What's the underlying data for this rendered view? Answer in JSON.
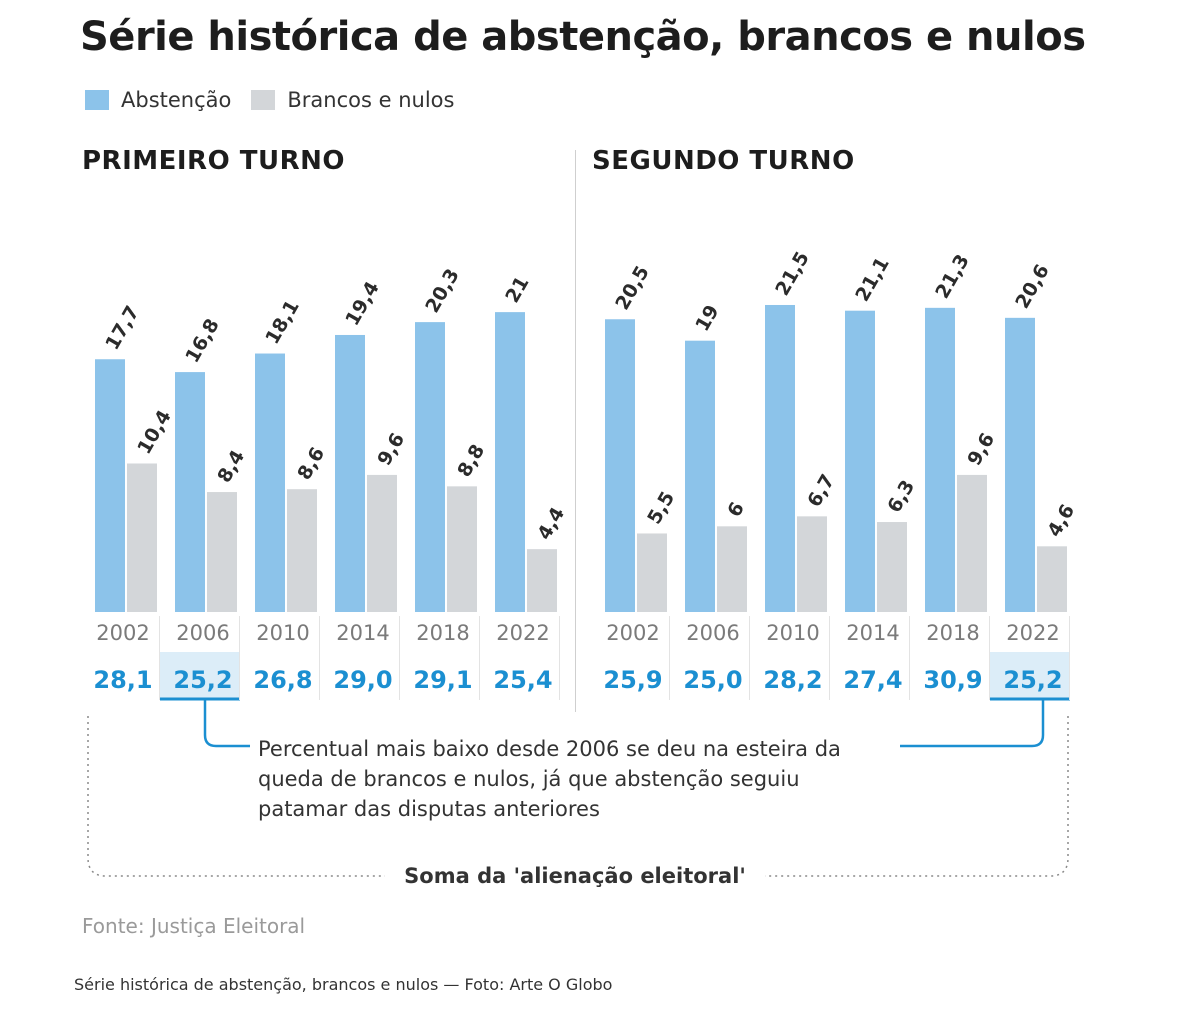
{
  "title": "Série histórica de abstenção, brancos e nulos",
  "legend": [
    {
      "label": "Abstenção",
      "color": "#8cc3ea"
    },
    {
      "label": "Brancos e nulos",
      "color": "#d3d6d9"
    }
  ],
  "colors": {
    "abstencao": "#8cc3ea",
    "brancos": "#d3d6d9",
    "total": "#1b8fd1",
    "highlight_bg": "#dcedf8",
    "connector": "#1b8fd1",
    "dotted": "#8a8a8a"
  },
  "chart_data": [
    {
      "type": "bar",
      "panel": "PRIMEIRO TURNO",
      "categories": [
        "2002",
        "2006",
        "2010",
        "2014",
        "2018",
        "2022"
      ],
      "series": [
        {
          "name": "Abstenção",
          "values": [
            17.7,
            16.8,
            18.1,
            19.4,
            20.3,
            21
          ],
          "labels": [
            "17,7",
            "16,8",
            "18,1",
            "19,4",
            "20,3",
            "21"
          ]
        },
        {
          "name": "Brancos e nulos",
          "values": [
            10.4,
            8.4,
            8.6,
            9.6,
            8.8,
            4.4
          ],
          "labels": [
            "10,4",
            "8,4",
            "8,6",
            "9,6",
            "8,8",
            "4,4"
          ]
        }
      ],
      "totals": [
        28.1,
        25.2,
        26.8,
        29.0,
        29.1,
        25.4
      ],
      "total_labels": [
        "28,1",
        "25,2",
        "26,8",
        "29,0",
        "29,1",
        "25,4"
      ],
      "highlight_index": 1
    },
    {
      "type": "bar",
      "panel": "SEGUNDO TURNO",
      "categories": [
        "2002",
        "2006",
        "2010",
        "2014",
        "2018",
        "2022"
      ],
      "series": [
        {
          "name": "Abstenção",
          "values": [
            20.5,
            19,
            21.5,
            21.1,
            21.3,
            20.6
          ],
          "labels": [
            "20,5",
            "19",
            "21,5",
            "21,1",
            "21,3",
            "20,6"
          ]
        },
        {
          "name": "Brancos e nulos",
          "values": [
            5.5,
            6,
            6.7,
            6.3,
            9.6,
            4.6
          ],
          "labels": [
            "5,5",
            "6",
            "6,7",
            "6,3",
            "9,6",
            "4,6"
          ]
        }
      ],
      "totals": [
        25.9,
        25.0,
        28.2,
        27.4,
        30.9,
        25.2
      ],
      "total_labels": [
        "25,9",
        "25,0",
        "28,2",
        "27,4",
        "30,9",
        "25,2"
      ],
      "highlight_index": 5
    }
  ],
  "annotation": {
    "lines": [
      "Percentual mais baixo desde 2006 se deu na esteira da",
      "queda de brancos e nulos, já que abstenção seguiu",
      "patamar das disputas anteriores"
    ]
  },
  "sum_label": "Soma da 'alienação eleitoral'",
  "source": "Fonte: Justiça Eleitoral",
  "caption": "Série histórica de abstenção, brancos e nulos — Foto: Arte O Globo"
}
